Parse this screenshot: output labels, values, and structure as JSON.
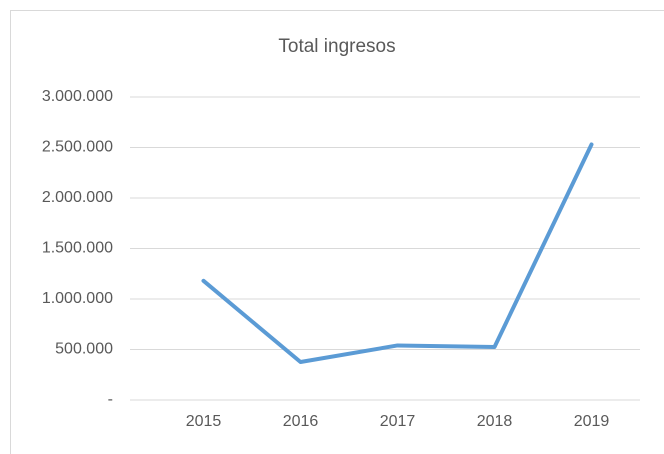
{
  "chart_data": {
    "type": "line",
    "title": "Total ingresos",
    "categories": [
      "2015",
      "2016",
      "2017",
      "2018",
      "2019"
    ],
    "series": [
      {
        "name": "Total ingresos",
        "color": "#5b9bd5",
        "values": [
          1180000,
          376000,
          540000,
          525000,
          2530000
        ]
      }
    ],
    "ylim": [
      0,
      3000000
    ],
    "yticks": [
      {
        "value": 0,
        "label": "-"
      },
      {
        "value": 500000,
        "label": "500.000"
      },
      {
        "value": 1000000,
        "label": "1.000.000"
      },
      {
        "value": 1500000,
        "label": "1.500.000"
      },
      {
        "value": 2000000,
        "label": "2.000.000"
      },
      {
        "value": 2500000,
        "label": "2.500.000"
      },
      {
        "value": 3000000,
        "label": "3.000.000"
      }
    ],
    "grid": true
  }
}
